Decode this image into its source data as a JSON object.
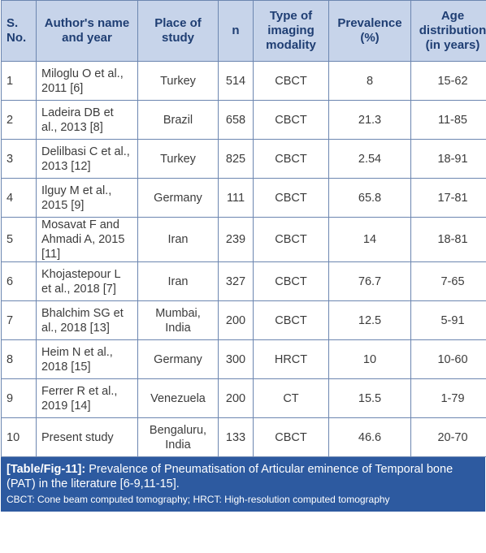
{
  "table": {
    "headers": {
      "sno": "S. No.",
      "author": "Author's name and year",
      "place": "Place of study",
      "n": "n",
      "type": "Type of imaging modality",
      "prevalence": "Prevalence (%)",
      "age": "Age distribution (in years)"
    },
    "rows": [
      {
        "sno": "1",
        "author": "Miloglu O et al., 2011 [6]",
        "place": "Turkey",
        "n": "514",
        "type": "CBCT",
        "prevalence": "8",
        "age": "15-62"
      },
      {
        "sno": "2",
        "author": "Ladeira DB et al., 2013 [8]",
        "place": "Brazil",
        "n": "658",
        "type": "CBCT",
        "prevalence": "21.3",
        "age": "11-85"
      },
      {
        "sno": "3",
        "author": "Delilbasi C et al., 2013 [12]",
        "place": "Turkey",
        "n": "825",
        "type": "CBCT",
        "prevalence": "2.54",
        "age": "18-91"
      },
      {
        "sno": "4",
        "author": "Ilguy M et al., 2015 [9]",
        "place": "Germany",
        "n": "111",
        "type": "CBCT",
        "prevalence": "65.8",
        "age": "17-81"
      },
      {
        "sno": "5",
        "author": "Mosavat F and Ahmadi A, 2015 [11]",
        "place": "Iran",
        "n": "239",
        "type": "CBCT",
        "prevalence": "14",
        "age": "18-81"
      },
      {
        "sno": "6",
        "author": "Khojastepour L et al., 2018 [7]",
        "place": "Iran",
        "n": "327",
        "type": "CBCT",
        "prevalence": "76.7",
        "age": "7-65"
      },
      {
        "sno": "7",
        "author": "Bhalchim SG et al., 2018 [13]",
        "place": "Mumbai, India",
        "n": "200",
        "type": "CBCT",
        "prevalence": "12.5",
        "age": "5-91"
      },
      {
        "sno": "8",
        "author": "Heim N et al., 2018 [15]",
        "place": "Germany",
        "n": "300",
        "type": "HRCT",
        "prevalence": "10",
        "age": "10-60"
      },
      {
        "sno": "9",
        "author": "Ferrer R et al., 2019 [14]",
        "place": "Venezuela",
        "n": "200",
        "type": "CT",
        "prevalence": "15.5",
        "age": "1-79"
      },
      {
        "sno": "10",
        "author": "Present study",
        "place": "Bengaluru, India",
        "n": "133",
        "type": "CBCT",
        "prevalence": "46.6",
        "age": "20-70"
      }
    ]
  },
  "caption": {
    "label": "[Table/Fig-11]:",
    "text": "Prevalence of Pneumatisation of Articular eminence of Temporal bone (PAT) in the literature [6-9,11-15].",
    "footnote": "CBCT: Cone beam computed tomography; HRCT: High-resolution computed tomography"
  },
  "colors": {
    "header_bg": "#c7d4ea",
    "header_text": "#1f3e73",
    "border": "#6c86b0",
    "caption_bg": "#2d5aa0"
  }
}
